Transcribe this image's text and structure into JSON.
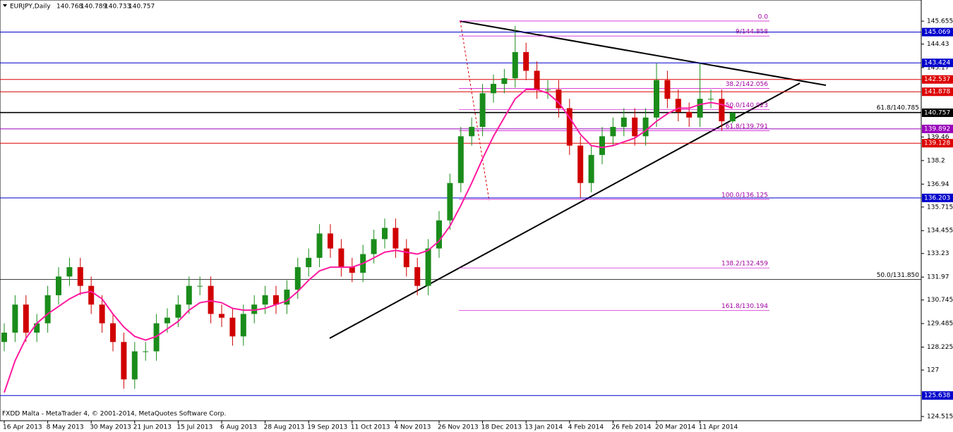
{
  "chart_data": {
    "type": "candlestick",
    "title": "EURJPY,Daily",
    "header_values": [
      140.768,
      140.789,
      140.733,
      140.757
    ],
    "footer": "FXDD Malta - MetaTrader 4, © 2001-2014, MetaQuotes Software Corp.",
    "ylim": [
      124.29,
      146.785
    ],
    "yticks": [
      145.655,
      144.43,
      143.17,
      139.46,
      138.2,
      136.94,
      135.715,
      134.455,
      133.23,
      131.97,
      130.745,
      129.485,
      128.225,
      127.0,
      124.515
    ],
    "categories": [
      "16 Apr 2013",
      null,
      null,
      null,
      "8 May 2013",
      null,
      null,
      null,
      "30 May 2013",
      null,
      null,
      null,
      "21 Jun 2013",
      null,
      null,
      null,
      "15 Jul 2013",
      null,
      null,
      null,
      "6 Aug 2013",
      null,
      null,
      null,
      "28 Aug 2013",
      null,
      null,
      null,
      "19 Sep 2013",
      null,
      null,
      null,
      "11 Oct 2013",
      null,
      null,
      null,
      "4 Nov 2013",
      null,
      null,
      null,
      "26 Nov 2013",
      null,
      null,
      null,
      "18 Dec 2013",
      null,
      null,
      null,
      "13 Jan 2014",
      null,
      null,
      null,
      "4 Feb 2014",
      null,
      null,
      null,
      "26 Feb 2014",
      null,
      null,
      null,
      "20 Mar 2014",
      null,
      null,
      null,
      "11 Apr 2014",
      null,
      null,
      null
    ],
    "open": [
      128.5,
      129.0,
      130.5,
      129.0,
      129.5,
      131.0,
      132.0,
      132.5,
      131.5,
      130.5,
      129.5,
      128.5,
      126.5,
      128.0,
      128.0,
      129.5,
      129.8,
      130.5,
      131.5,
      131.5,
      130.0,
      129.8,
      128.8,
      130.0,
      130.5,
      131.0,
      130.5,
      131.3,
      132.5,
      133.0,
      134.3,
      133.5,
      132.5,
      132.2,
      133.2,
      134.0,
      134.6,
      133.5,
      132.5,
      131.5,
      133.5,
      135.0,
      137.0,
      139.5,
      140.0,
      141.8,
      142.3,
      142.6,
      144.0,
      143.0,
      142.0,
      142.0,
      141.0,
      139.0,
      137.0,
      138.5,
      139.5,
      140.0,
      140.5,
      139.5,
      140.5,
      142.5,
      141.5,
      140.8,
      140.5,
      141.5,
      141.5,
      140.3
    ],
    "high": [
      129.5,
      131.0,
      131.0,
      130.0,
      131.5,
      132.5,
      133.0,
      133.0,
      132.0,
      131.0,
      130.0,
      129.0,
      128.5,
      128.5,
      130.0,
      130.3,
      131.0,
      132.0,
      132.0,
      132.0,
      130.5,
      130.3,
      130.5,
      131.0,
      131.5,
      131.5,
      131.8,
      133.0,
      133.5,
      134.8,
      134.8,
      134.0,
      133.0,
      133.7,
      134.5,
      135.1,
      135.1,
      134.0,
      133.0,
      134.0,
      135.5,
      137.5,
      140.0,
      140.5,
      142.3,
      142.8,
      143.1,
      145.4,
      144.5,
      143.5,
      142.5,
      142.5,
      141.5,
      139.5,
      139.0,
      140.0,
      140.5,
      141.0,
      141.0,
      141.0,
      143.4,
      143.0,
      142.0,
      141.3,
      143.4,
      142.0,
      142.0,
      140.789
    ],
    "low": [
      128.0,
      128.5,
      128.5,
      128.5,
      129.0,
      130.5,
      131.5,
      131.0,
      130.0,
      129.0,
      128.0,
      126.0,
      126.0,
      127.5,
      127.5,
      129.0,
      129.3,
      130.0,
      131.0,
      129.5,
      129.3,
      128.3,
      128.3,
      129.5,
      130.0,
      130.0,
      130.0,
      130.8,
      132.0,
      132.5,
      133.0,
      132.0,
      131.7,
      131.7,
      132.7,
      133.5,
      133.0,
      132.0,
      131.0,
      131.0,
      133.0,
      134.5,
      136.5,
      139.0,
      139.5,
      141.3,
      141.8,
      142.1,
      142.5,
      141.5,
      141.5,
      140.5,
      138.5,
      136.2,
      136.5,
      138.0,
      139.0,
      139.5,
      139.0,
      139.0,
      140.0,
      141.0,
      140.3,
      140.0,
      140.0,
      141.0,
      139.8,
      140.2
    ],
    "close": [
      129.0,
      130.5,
      129.0,
      129.5,
      131.0,
      132.0,
      132.5,
      131.5,
      130.5,
      129.5,
      128.5,
      126.5,
      128.0,
      128.0,
      129.5,
      129.8,
      130.5,
      131.5,
      131.5,
      130.0,
      129.8,
      128.8,
      130.0,
      130.5,
      131.0,
      130.5,
      131.3,
      132.5,
      133.0,
      134.3,
      133.5,
      132.5,
      132.2,
      133.2,
      134.0,
      134.6,
      133.5,
      132.5,
      131.5,
      133.5,
      135.0,
      137.0,
      139.5,
      140.0,
      141.8,
      142.3,
      142.6,
      144.0,
      143.0,
      142.0,
      142.0,
      141.0,
      139.0,
      137.0,
      138.5,
      139.5,
      140.0,
      140.5,
      139.5,
      140.5,
      142.5,
      141.5,
      140.8,
      140.5,
      141.5,
      141.5,
      140.3,
      140.757
    ],
    "up_color": "#1a8c1a",
    "down_color": "#d00000",
    "ma": {
      "color": "#ff1aa0",
      "values": [
        125.8,
        127.5,
        128.7,
        129.5,
        130.0,
        130.4,
        130.8,
        131.1,
        131.2,
        130.8,
        130.0,
        129.3,
        128.8,
        128.6,
        128.8,
        129.2,
        129.6,
        130.2,
        130.6,
        130.7,
        130.6,
        130.3,
        130.2,
        130.2,
        130.3,
        130.5,
        130.7,
        131.2,
        131.8,
        132.3,
        132.5,
        132.5,
        132.5,
        132.7,
        133.0,
        133.3,
        133.4,
        133.3,
        133.2,
        133.4,
        133.9,
        134.7,
        135.8,
        137.0,
        138.3,
        139.5,
        140.5,
        141.5,
        142.0,
        142.0,
        141.8,
        141.3,
        140.5,
        139.6,
        139.0,
        138.9,
        139.0,
        139.2,
        139.4,
        139.8,
        140.3,
        140.7,
        141.0,
        141.0,
        141.2,
        141.3,
        141.2,
        141.0
      ]
    },
    "levels": [
      {
        "value": 145.069,
        "color": "#0000cc"
      },
      {
        "value": 143.424,
        "color": "#0000cc"
      },
      {
        "value": 142.537,
        "color": "#dd0000"
      },
      {
        "value": 141.878,
        "color": "#dd0000"
      },
      {
        "value": 140.757,
        "color": "#000000"
      },
      {
        "value": 139.892,
        "color": "#9900bb"
      },
      {
        "value": 139.128,
        "color": "#dd0000"
      },
      {
        "value": 136.203,
        "color": "#0000cc"
      },
      {
        "value": 125.638,
        "color": "#0000cc"
      }
    ],
    "fib_levels": [
      {
        "value": 145.66,
        "label": "0.0"
      },
      {
        "value": 144.858,
        "label": "9/144.858"
      },
      {
        "value": 142.056,
        "label": "38.2/142.056"
      },
      {
        "value": 140.923,
        "label": "50.0/140.923"
      },
      {
        "value": 139.791,
        "label": "61.8/139.791"
      },
      {
        "value": 136.125,
        "label": "100.0/136.125"
      },
      {
        "value": 132.459,
        "label": "138.2/132.459"
      },
      {
        "value": 130.194,
        "label": "161.8/130.194"
      }
    ],
    "fib2_levels": [
      {
        "value": 140.785,
        "label": "61.8/140.785"
      },
      {
        "value": 131.85,
        "label": "50.0/131.850"
      }
    ]
  }
}
